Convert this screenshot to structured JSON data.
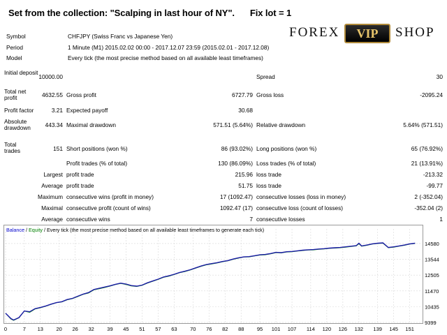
{
  "header": {
    "title": "Set from the collection: \"Scalping in last hour of NY\".",
    "lot": "Fix lot = 1"
  },
  "logo": {
    "word1": "FOREX",
    "badge": "VIP",
    "word2": "SHOP"
  },
  "info": {
    "symbol_label": "Symbol",
    "symbol": "CHFJPY (Swiss Franc vs Japanese Yen)",
    "period_label": "Period",
    "period": "1 Minute (M1) 2015.02.02 00:00 - 2017.12.07 23:59 (2015.02.01 - 2017.12.08)",
    "model_label": "Model",
    "model": "Every tick (the most precise method based on all available least timeframes)"
  },
  "stats": {
    "initial_deposit_label": "Initial deposit",
    "initial_deposit": "10000.00",
    "spread_label": "Spread",
    "spread": "30",
    "total_net_profit_label": "Total net profit",
    "total_net_profit": "4632.55",
    "gross_profit_label": "Gross profit",
    "gross_profit": "6727.79",
    "gross_loss_label": "Gross loss",
    "gross_loss": "-2095.24",
    "profit_factor_label": "Profit factor",
    "profit_factor": "3.21",
    "expected_payoff_label": "Expected payoff",
    "expected_payoff": "30.68",
    "absolute_drawdown_label": "Absolute drawdown",
    "absolute_drawdown": "443.34",
    "maximal_drawdown_label": "Maximal drawdown",
    "maximal_drawdown": "571.51 (5.64%)",
    "relative_drawdown_label": "Relative drawdown",
    "relative_drawdown": "5.64% (571.51)",
    "total_trades_label": "Total trades",
    "total_trades": "151",
    "short_positions_label": "Short positions (won %)",
    "short_positions": "86 (93.02%)",
    "long_positions_label": "Long positions (won %)",
    "long_positions": "65 (76.92%)",
    "profit_trades_label": "Profit trades (% of total)",
    "profit_trades": "130 (86.09%)",
    "loss_trades_label": "Loss trades (% of total)",
    "loss_trades": "21 (13.91%)",
    "largest_label": "Largest",
    "largest_profit_label": "profit trade",
    "largest_profit": "215.96",
    "largest_loss_label": "loss trade",
    "largest_loss": "-213.32",
    "average_label": "Average",
    "average_profit_label": "profit trade",
    "average_profit": "51.75",
    "average_loss_label": "loss trade",
    "average_loss": "-99.77",
    "maximum_label": "Maximum",
    "max_consec_wins_label": "consecutive wins (profit in money)",
    "max_consec_wins": "17 (1092.47)",
    "max_consec_losses_label": "consecutive losses (loss in money)",
    "max_consec_losses": "2 (-352.04)",
    "maximal_label": "Maximal",
    "maximal_consec_profit_label": "consecutive profit (count of wins)",
    "maximal_consec_profit": "1092.47 (17)",
    "maximal_consec_loss_label": "consecutive loss (count of losses)",
    "maximal_consec_loss": "-352.04 (2)",
    "average2_label": "Average",
    "avg_consec_wins_label": "consecutive wins",
    "avg_consec_wins": "7",
    "avg_consec_losses_label": "consecutive losses",
    "avg_consec_losses": "1"
  },
  "chart_data": {
    "type": "line",
    "legend_balance": "Balance",
    "legend_sep": " / ",
    "legend_equity": "Equity",
    "legend_rest": " / Every tick (the most precise method based on all available least timeframes to generate each tick)",
    "colors": {
      "balance": "#1a1aa6",
      "equity": "#1f9a1f"
    },
    "xlim": [
      0,
      155
    ],
    "ylim": [
      9399,
      15080
    ],
    "x_ticks": [
      0,
      7,
      13,
      20,
      26,
      32,
      39,
      45,
      51,
      57,
      63,
      70,
      76,
      82,
      88,
      95,
      101,
      107,
      114,
      120,
      126,
      132,
      139,
      145,
      151
    ],
    "y_ticks": [
      9399,
      10435,
      11470,
      12505,
      13544,
      14580
    ],
    "series": [
      {
        "name": "Balance",
        "x": [
          0,
          2,
          3,
          5,
          7,
          9,
          11,
          13,
          15,
          17,
          19,
          21,
          23,
          25,
          27,
          29,
          31,
          33,
          35,
          37,
          39,
          41,
          43,
          45,
          47,
          49,
          51,
          53,
          55,
          57,
          59,
          61,
          63,
          65,
          67,
          69,
          71,
          73,
          75,
          77,
          79,
          81,
          83,
          85,
          87,
          89,
          91,
          93,
          95,
          97,
          99,
          101,
          103,
          105,
          107,
          109,
          111,
          113,
          115,
          117,
          119,
          121,
          123,
          125,
          127,
          129,
          131,
          132,
          133,
          135,
          137,
          139,
          141,
          143,
          145,
          147,
          149,
          151,
          153
        ],
        "y": [
          10000,
          9650,
          9560,
          9720,
          10150,
          10100,
          10300,
          10380,
          10480,
          10600,
          10700,
          10760,
          10900,
          10980,
          11120,
          11260,
          11360,
          11560,
          11640,
          11720,
          11800,
          11900,
          11980,
          11920,
          11820,
          11780,
          11850,
          12000,
          12120,
          12240,
          12380,
          12460,
          12560,
          12680,
          12760,
          12860,
          12980,
          13100,
          13200,
          13260,
          13320,
          13400,
          13460,
          13560,
          13640,
          13700,
          13720,
          13780,
          13840,
          13860,
          13920,
          14000,
          13980,
          14040,
          14060,
          14100,
          14140,
          14170,
          14180,
          14220,
          14240,
          14280,
          14300,
          14320,
          14360,
          14400,
          14440,
          14600,
          14420,
          14480,
          14560,
          14600,
          14620,
          14320,
          14360,
          14420,
          14480,
          14560,
          14600
        ]
      },
      {
        "name": "Equity",
        "x": [
          0,
          2,
          3,
          5,
          7,
          9,
          11,
          13,
          15,
          17,
          19,
          21,
          23,
          25,
          27,
          29,
          31,
          33,
          35,
          37,
          39,
          41,
          43,
          45,
          47,
          49,
          51,
          53,
          55,
          57,
          59,
          61,
          63,
          65,
          67,
          69,
          71,
          73,
          75,
          77,
          79,
          81,
          83,
          85,
          87,
          89,
          91,
          93,
          95,
          97,
          99,
          101,
          103,
          105,
          107,
          109,
          111,
          113,
          115,
          117,
          119,
          121,
          123,
          125,
          127,
          129,
          131,
          132,
          133,
          135,
          137,
          139,
          141,
          143,
          145,
          147,
          149,
          151,
          153
        ],
        "y": [
          10000,
          9620,
          9530,
          9700,
          10140,
          10060,
          10280,
          10360,
          10460,
          10580,
          10690,
          10740,
          10880,
          10960,
          11100,
          11240,
          11330,
          11540,
          11610,
          11690,
          11780,
          11880,
          11960,
          11890,
          11790,
          11760,
          11830,
          11980,
          12100,
          12220,
          12360,
          12430,
          12540,
          12660,
          12740,
          12840,
          12960,
          13080,
          13180,
          13240,
          13300,
          13380,
          13440,
          13540,
          13620,
          13690,
          13700,
          13760,
          13820,
          13840,
          13900,
          13980,
          13960,
          14020,
          14040,
          14080,
          14120,
          14150,
          14160,
          14200,
          14220,
          14260,
          14280,
          14300,
          14340,
          14380,
          14420,
          14560,
          14400,
          14460,
          14540,
          14580,
          14600,
          14300,
          14340,
          14400,
          14460,
          14540,
          14580
        ]
      }
    ]
  }
}
